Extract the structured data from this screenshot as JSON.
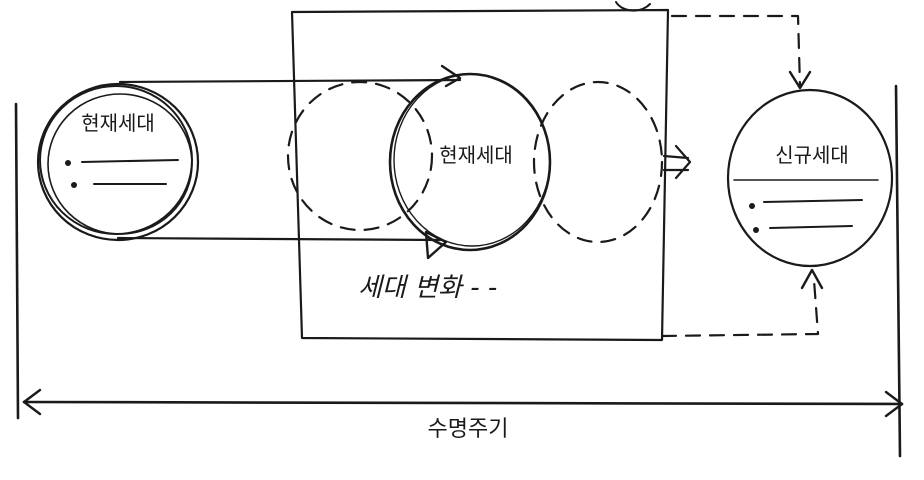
{
  "diagram": {
    "nodes": {
      "current_generation_left": {
        "label": "현재세대"
      },
      "current_generation_center": {
        "label": "현재세대"
      },
      "future_generation": {
        "label": "신규세대"
      }
    },
    "annotations": {
      "change_period": "세대 변화 - -",
      "lifecycle": "수명주기"
    }
  }
}
